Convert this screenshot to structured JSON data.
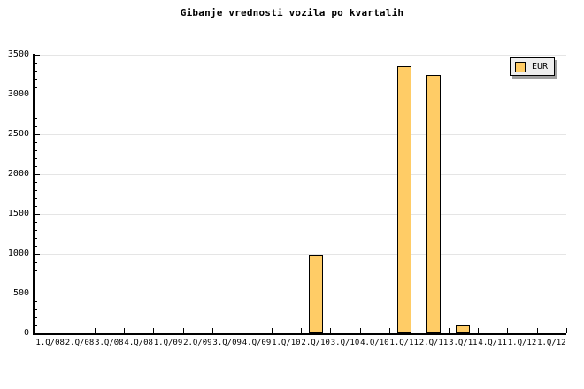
{
  "chart_data": {
    "type": "bar",
    "title": "Gibanje vrednosti vozila po kvartalih",
    "xlabel": "",
    "ylabel": "",
    "categories": [
      "1.Q/08",
      "2.Q/08",
      "3.Q/08",
      "4.Q/08",
      "1.Q/09",
      "2.Q/09",
      "3.Q/09",
      "4.Q/09",
      "1.Q/10",
      "2.Q/10",
      "3.Q/10",
      "4.Q/10",
      "1.Q/11",
      "2.Q/11",
      "3.Q/11",
      "4.Q/11",
      "1.Q/12",
      "1.Q/12"
    ],
    "series": [
      {
        "name": "EUR",
        "values": [
          0,
          0,
          0,
          0,
          0,
          0,
          0,
          0,
          0,
          990,
          0,
          0,
          3360,
          3240,
          95,
          0,
          0,
          0
        ]
      }
    ],
    "ylim": [
      0,
      3500
    ],
    "ytick_step": 500,
    "ytick_minor_step": 100,
    "grid": "horizontal-major",
    "legend_position": "top-right"
  },
  "colors": {
    "bar_fill": "#FFCC66",
    "bar_border": "#000000",
    "grid": "#E5E5E5",
    "axis": "#000000",
    "legend_bg": "#EEEEEE",
    "legend_shadow": "#A0A0A0",
    "background": "#FFFFFF",
    "text": "#000000"
  }
}
